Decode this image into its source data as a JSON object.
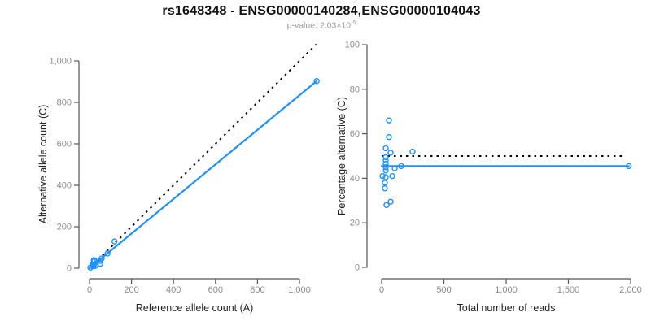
{
  "header": {
    "title": "rs1648348 - ENSG00000140284,ENSG00000104043",
    "subtitle_prefix": "p-value: 2.03×10",
    "subtitle_exponent": "-5"
  },
  "colors": {
    "accent_blue": "#1E90FF",
    "reference_black": "#000000",
    "axis_gray": "#555555",
    "tick_label_gray": "#8c8c8c",
    "axis_title": "#222222"
  },
  "chart_data": [
    {
      "type": "scatter",
      "title": "",
      "xlabel": "Reference allele count (A)",
      "ylabel": "Alternative allele count (C)",
      "xlim": [
        0,
        1100
      ],
      "ylim": [
        0,
        1080
      ],
      "grid": false,
      "legend": false,
      "xticks": [
        0,
        200,
        400,
        600,
        800,
        1000
      ],
      "xtick_labels": [
        "0",
        "200",
        "400",
        "600",
        "800",
        "1,000"
      ],
      "yticks": [
        0,
        200,
        400,
        600,
        800,
        1000
      ],
      "ytick_labels": [
        "0",
        "200",
        "400",
        "600",
        "800",
        "1,000"
      ],
      "points": [
        [
          20,
          39
        ],
        [
          24,
          35
        ],
        [
          15,
          18
        ],
        [
          35,
          37
        ],
        [
          119,
          129
        ],
        [
          17,
          16
        ],
        [
          17,
          16
        ],
        [
          18,
          15
        ],
        [
          18,
          15
        ],
        [
          19,
          14
        ],
        [
          58,
          47
        ],
        [
          86,
          71
        ],
        [
          4,
          3
        ],
        [
          20,
          13
        ],
        [
          50,
          35
        ],
        [
          16,
          10
        ],
        [
          17,
          9
        ],
        [
          51,
          21
        ],
        [
          28,
          11
        ],
        [
          1082,
          903
        ]
      ],
      "reference_line": {
        "label": "identity line (dotted)",
        "x": [
          0,
          1080
        ],
        "y": [
          0,
          1080
        ]
      },
      "fit_line": {
        "label": "fit line",
        "x": [
          0,
          1082
        ],
        "y": [
          0,
          903
        ]
      }
    },
    {
      "type": "scatter",
      "title": "",
      "xlabel": "Total number of reads",
      "ylabel": "Percentage alternative (C)",
      "xlim": [
        0,
        2000
      ],
      "ylim": [
        0,
        100
      ],
      "grid": false,
      "legend": false,
      "xticks": [
        0,
        500,
        1000,
        1500,
        2000
      ],
      "xtick_labels": [
        "0",
        "500",
        "1,000",
        "1,500",
        "2,000"
      ],
      "yticks": [
        0,
        20,
        40,
        60,
        80,
        100
      ],
      "ytick_labels": [
        "0",
        "20",
        "40",
        "60",
        "80",
        "100"
      ],
      "points": [
        [
          59,
          66
        ],
        [
          59,
          58.5
        ],
        [
          33,
          53.5
        ],
        [
          72,
          51.5
        ],
        [
          248,
          52
        ],
        [
          33,
          49.5
        ],
        [
          33,
          48
        ],
        [
          33,
          46.5
        ],
        [
          33,
          45
        ],
        [
          33,
          43.5
        ],
        [
          105,
          44.5
        ],
        [
          157,
          45.5
        ],
        [
          7,
          41
        ],
        [
          33,
          40.5
        ],
        [
          85,
          41
        ],
        [
          26,
          38
        ],
        [
          26,
          35.5
        ],
        [
          72,
          29.5
        ],
        [
          39,
          28
        ],
        [
          1985,
          45.5
        ]
      ],
      "reference_line": {
        "label": "50% line (dotted)",
        "x": [
          0,
          1960
        ],
        "y": [
          50,
          50
        ]
      },
      "fit_line": {
        "label": "fit line",
        "x": [
          0,
          1985
        ],
        "y": [
          45.5,
          45.5
        ]
      }
    }
  ]
}
